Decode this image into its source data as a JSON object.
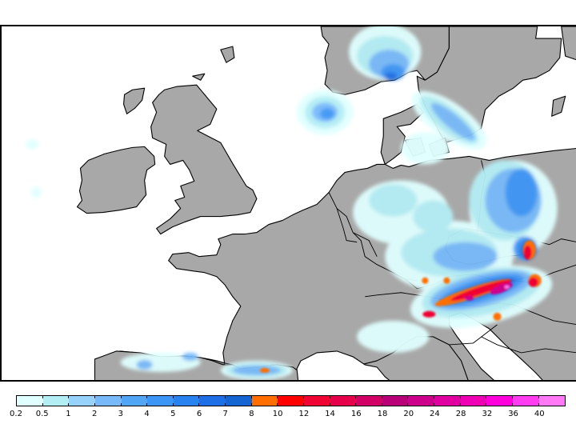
{
  "map": {
    "type": "precipitation-forecast",
    "region": "Western and Central Europe",
    "land_color": "#a8a8a8",
    "sea_color": "#ffffff",
    "coastline_color": "#000000"
  },
  "colorbar": {
    "labels": [
      "0.2",
      "0.5",
      "1",
      "2",
      "3",
      "4",
      "5",
      "6",
      "7",
      "8",
      "10",
      "12",
      "14",
      "16",
      "18",
      "20",
      "24",
      "28",
      "32",
      "36",
      "40"
    ],
    "colors": [
      "#e0ffff",
      "#b4eef5",
      "#96d2fa",
      "#78b9fa",
      "#50a5f5",
      "#3c96f5",
      "#2882f0",
      "#1e6ee6",
      "#1464d2",
      "#ff6e00",
      "#ff0000",
      "#f00532",
      "#e6004b",
      "#d20064",
      "#b90078",
      "#cd008c",
      "#e100a0",
      "#f000b4",
      "#ff00dc",
      "#ff3cf0",
      "#ff78f5"
    ]
  },
  "chart_data": {
    "type": "heatmap",
    "title": "",
    "xlabel": "",
    "ylabel": "",
    "colorbar": {
      "thresholds": [
        0.2,
        0.5,
        1,
        2,
        3,
        4,
        5,
        6,
        7,
        8,
        10,
        12,
        14,
        16,
        18,
        20,
        24,
        28,
        32,
        36,
        40
      ],
      "units": ""
    },
    "features": [
      {
        "area": "Southern Norway / Skagerrak",
        "max_level": "6-7"
      },
      {
        "area": "North Sea (central)",
        "max_level": "5-6"
      },
      {
        "area": "Sweden west coast / Kattegat",
        "max_level": "5-6"
      },
      {
        "area": "Poland (central/east)",
        "max_level": "5-6"
      },
      {
        "area": "Northern Alps / Austria",
        "max_level": "8-10"
      },
      {
        "area": "Southern Alps / Slovenia-Italy border",
        "max_level": "36-40"
      },
      {
        "area": "Slovakia / Tatra",
        "max_level": "12-14"
      },
      {
        "area": "Pyrenees",
        "max_level": "10-12"
      },
      {
        "area": "Germany / Benelux",
        "max_level": "2-4"
      },
      {
        "area": "Cantabrian coast (Spain)",
        "max_level": "3-5"
      }
    ]
  }
}
